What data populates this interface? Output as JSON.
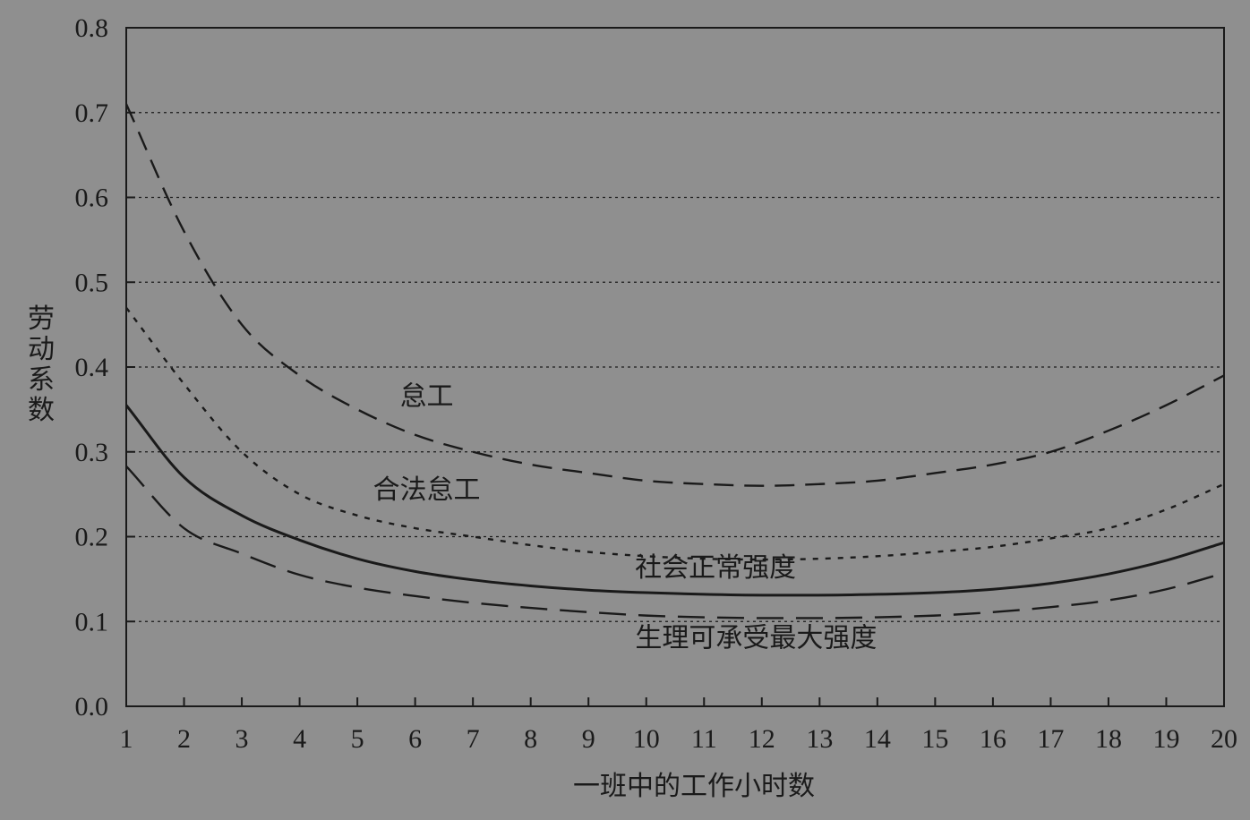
{
  "chart_data": {
    "type": "line",
    "title": "",
    "xlabel": "一班中的工作小时数",
    "ylabel": "劳动系数",
    "xlim": [
      1,
      20
    ],
    "ylim": [
      0.0,
      0.8
    ],
    "x_ticks": [
      "1",
      "2",
      "3",
      "4",
      "5",
      "6",
      "7",
      "8",
      "9",
      "10",
      "11",
      "12",
      "13",
      "14",
      "15",
      "16",
      "17",
      "18",
      "19",
      "20"
    ],
    "y_ticks": [
      "0.0",
      "0.1",
      "0.2",
      "0.3",
      "0.4",
      "0.5",
      "0.6",
      "0.7",
      "0.8"
    ],
    "grid": "horizontal dotted",
    "x": [
      1,
      2,
      3,
      4,
      5,
      6,
      7,
      8,
      9,
      10,
      11,
      12,
      13,
      14,
      15,
      16,
      17,
      18,
      19,
      20
    ],
    "series": [
      {
        "name": "怠工",
        "style": "long-dash",
        "values": [
          0.71,
          0.56,
          0.45,
          0.39,
          0.35,
          0.32,
          0.3,
          0.285,
          0.275,
          0.266,
          0.262,
          0.26,
          0.262,
          0.266,
          0.275,
          0.285,
          0.3,
          0.325,
          0.355,
          0.39
        ]
      },
      {
        "name": "合法怠工",
        "style": "short-dash",
        "values": [
          0.47,
          0.38,
          0.3,
          0.25,
          0.225,
          0.21,
          0.2,
          0.19,
          0.182,
          0.177,
          0.174,
          0.173,
          0.174,
          0.177,
          0.182,
          0.188,
          0.198,
          0.21,
          0.232,
          0.262
        ]
      },
      {
        "name": "社会正常强度",
        "style": "solid",
        "values": [
          0.355,
          0.27,
          0.225,
          0.196,
          0.174,
          0.159,
          0.149,
          0.142,
          0.137,
          0.134,
          0.132,
          0.131,
          0.131,
          0.132,
          0.134,
          0.138,
          0.145,
          0.156,
          0.172,
          0.193
        ]
      },
      {
        "name": "生理可承受最大强度",
        "style": "long-dash-wide",
        "values": [
          0.283,
          0.21,
          0.18,
          0.155,
          0.14,
          0.13,
          0.122,
          0.116,
          0.111,
          0.107,
          0.105,
          0.104,
          0.104,
          0.105,
          0.107,
          0.111,
          0.117,
          0.125,
          0.138,
          0.157
        ]
      }
    ],
    "annotations": [
      {
        "text": "怠工",
        "x": 6.2,
        "y": 0.355
      },
      {
        "text": "合法怠工",
        "x": 6.2,
        "y": 0.245
      },
      {
        "text": "社会正常强度",
        "x": 11.2,
        "y": 0.153
      },
      {
        "text": "生理可承受最大强度",
        "x": 11.9,
        "y": 0.07
      }
    ]
  }
}
